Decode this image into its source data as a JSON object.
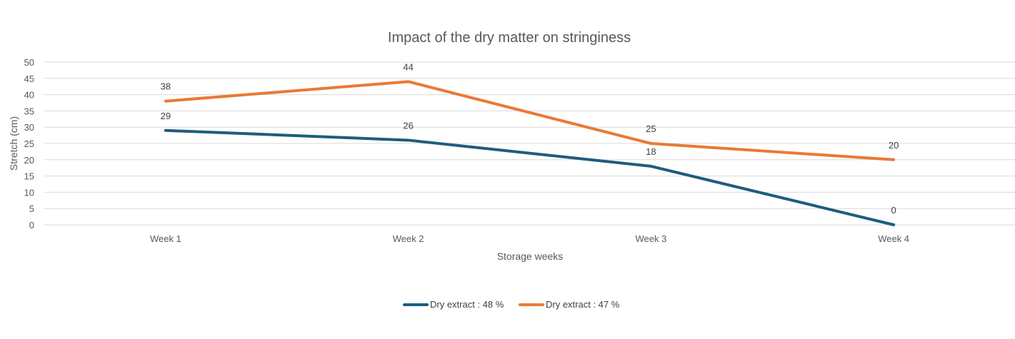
{
  "chart_data": {
    "type": "line",
    "title": "Impact of the dry matter on stringiness",
    "xlabel": "Storage weeks",
    "ylabel": "Stretch (cm)",
    "categories": [
      "Week 1",
      "Week 2",
      "Week 3",
      "Week 4"
    ],
    "ylim": [
      0,
      50
    ],
    "yticks": [
      0,
      5,
      10,
      15,
      20,
      25,
      30,
      35,
      40,
      45,
      50
    ],
    "grid": true,
    "legend_position": "bottom",
    "series": [
      {
        "name": "Dry extract : 48 %",
        "color": "#1f5c7d",
        "values": [
          29,
          26,
          18,
          0
        ]
      },
      {
        "name": "Dry extract : 47 %",
        "color": "#e87a35",
        "values": [
          38,
          44,
          25,
          20
        ]
      }
    ]
  }
}
